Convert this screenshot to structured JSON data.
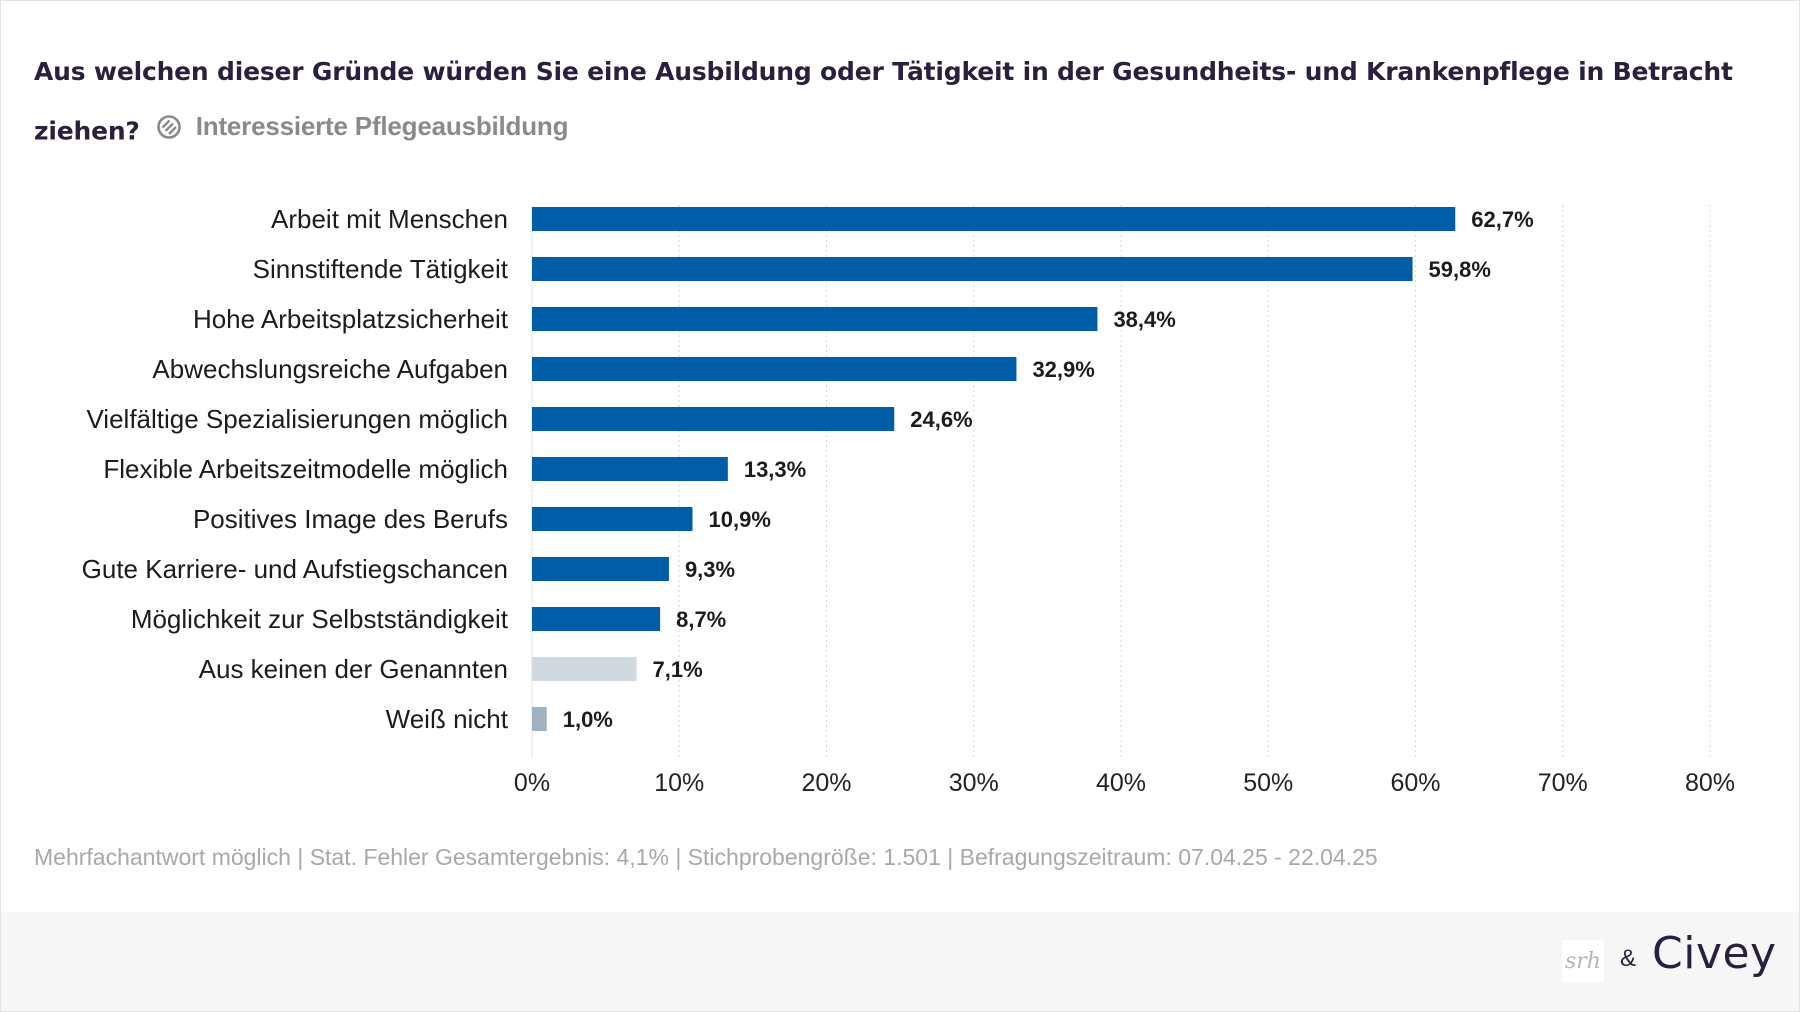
{
  "header": {
    "title": "Aus welchen dieser Gründe würden Sie eine Ausbildung oder Tätigkeit in der Gesundheits- und Krankenpflege in Betracht ziehen?",
    "subtitle": "Interessierte Pflegeausbildung",
    "subtitle_icon": "filter-icon"
  },
  "chart_data": {
    "type": "bar",
    "orientation": "horizontal",
    "categories": [
      "Arbeit mit Menschen",
      "Sinnstiftende Tätigkeit",
      "Hohe Arbeitsplatzsicherheit",
      "Abwechslungsreiche Aufgaben",
      "Vielfältige Spezialisierungen möglich",
      "Flexible Arbeitszeitmodelle möglich",
      "Positives Image des Berufs",
      "Gute Karriere- und Aufstiegschancen",
      "Möglichkeit zur Selbstständigkeit",
      "Aus keinen der Genannten",
      "Weiß nicht"
    ],
    "values": [
      62.7,
      59.8,
      38.4,
      32.9,
      24.6,
      13.3,
      10.9,
      9.3,
      8.7,
      7.1,
      1.0
    ],
    "value_labels": [
      "62,7%",
      "59,8%",
      "38,4%",
      "32,9%",
      "24,6%",
      "13,3%",
      "10,9%",
      "9,3%",
      "8,7%",
      "7,1%",
      "1,0%"
    ],
    "bar_colors": [
      "#005ea8",
      "#005ea8",
      "#005ea8",
      "#005ea8",
      "#005ea8",
      "#005ea8",
      "#005ea8",
      "#005ea8",
      "#005ea8",
      "#d0d8e0",
      "#9fb2c4"
    ],
    "xlim": [
      0,
      80
    ],
    "xticks": [
      0,
      10,
      20,
      30,
      40,
      50,
      60,
      70,
      80
    ],
    "xtick_labels": [
      "0%",
      "10%",
      "20%",
      "30%",
      "40%",
      "50%",
      "60%",
      "70%",
      "80%"
    ],
    "grid": "vertical dotted",
    "legend": "none"
  },
  "footer": {
    "note": "Mehrfachantwort möglich | Stat. Fehler Gesamtergebnis: 4,1% | Stichprobengröße: 1.501 | Befragungszeitraum: 07.04.25 - 22.04.25",
    "logo_left": "srh",
    "ampersand": "&",
    "logo_right": "Civey"
  },
  "colors": {
    "accent": "#005ea8",
    "title": "#2a1f3d",
    "muted": "#a8a8a8"
  }
}
